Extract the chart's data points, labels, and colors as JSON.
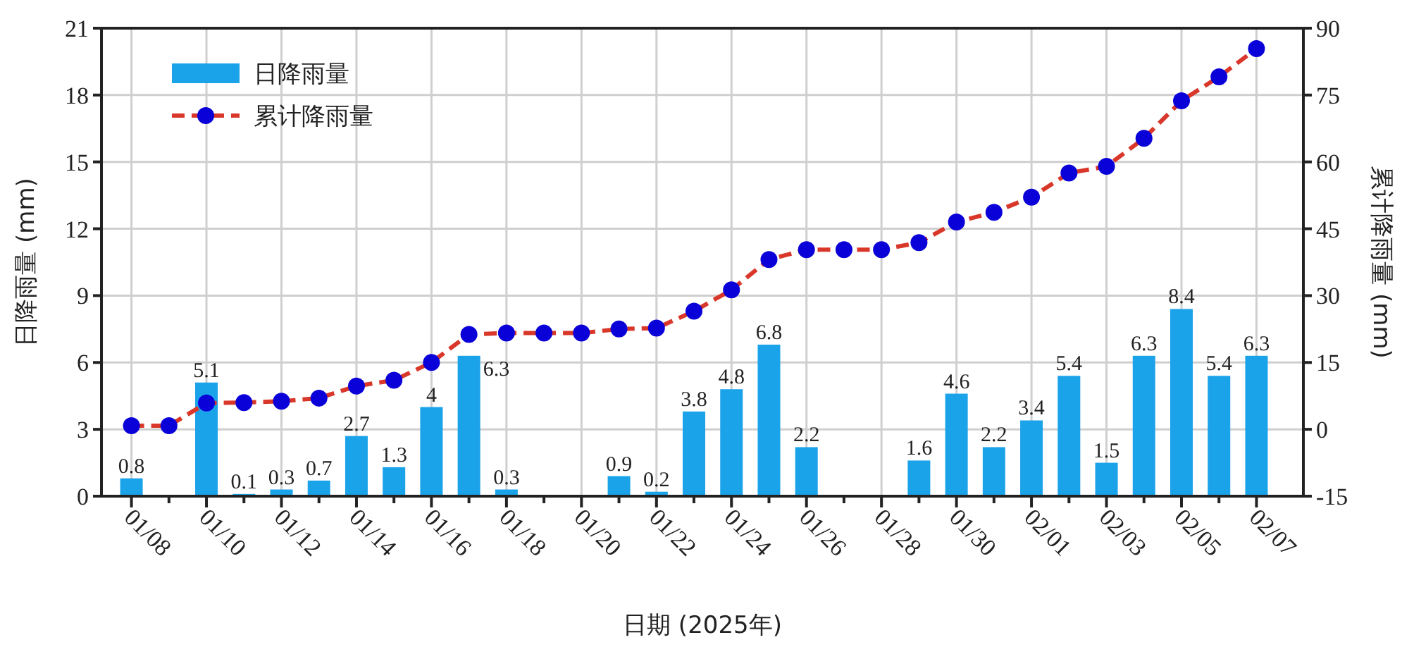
{
  "chart_data": {
    "type": "bar",
    "xlabel": "日期 (2025年)",
    "ylabel": "日降雨量 (mm)",
    "y2label": "累计降雨量 (mm)",
    "categories": [
      "01/08",
      null,
      "01/10",
      null,
      "01/12",
      null,
      "01/14",
      null,
      "01/16",
      null,
      "01/18",
      null,
      "01/20",
      null,
      "01/22",
      null,
      "01/24",
      null,
      "01/26",
      null,
      "01/28",
      null,
      "01/30",
      null,
      "02/01",
      null,
      "02/03",
      null,
      "02/05",
      null,
      "02/07"
    ],
    "series": [
      {
        "name": "日降雨量",
        "color": "#1ba3ea",
        "values": [
          0.8,
          null,
          5.1,
          0.1,
          0.3,
          0.7,
          2.7,
          1.3,
          4,
          6.3,
          0.3,
          null,
          null,
          0.9,
          0.2,
          3.8,
          4.8,
          6.8,
          2.2,
          null,
          null,
          1.6,
          4.6,
          2.2,
          3.4,
          5.4,
          1.5,
          6.3,
          8.4,
          5.4,
          6.3
        ],
        "value_labels": [
          "0.8",
          null,
          "5.1",
          "0.1",
          "0.3",
          "0.7",
          "2.7",
          "1.3",
          "4",
          "6.3",
          "0.3",
          null,
          null,
          "0.9",
          "0.2",
          "3.8",
          "4.8",
          "6.8",
          "2.2",
          null,
          null,
          "1.6",
          "4.6",
          "2.2",
          "3.4",
          "5.4",
          "1.5",
          "6.3",
          "8.4",
          "5.4",
          "6.3"
        ]
      },
      {
        "name": "累计降雨量",
        "type": "line",
        "axis": "y2",
        "color": "#d8372a",
        "marker": "circle",
        "line_style": "dashed",
        "values": [
          0.8,
          0.8,
          5.9,
          6.0,
          6.3,
          7.0,
          9.7,
          11.0,
          15.0,
          21.3,
          21.6,
          21.6,
          21.6,
          22.5,
          22.7,
          26.5,
          31.3,
          38.1,
          40.3,
          40.3,
          40.3,
          41.9,
          46.5,
          48.7,
          52.1,
          57.5,
          59.0,
          65.3,
          73.7,
          79.1,
          85.4
        ]
      }
    ],
    "ylim": [
      0,
      21
    ],
    "yticks": [
      0,
      3,
      6,
      9,
      12,
      15,
      18,
      21
    ],
    "y2lim": [
      -15,
      90
    ],
    "y2ticks": [
      -15,
      0,
      15,
      30,
      45,
      60,
      75,
      90
    ],
    "grid": true,
    "legend": "top left"
  }
}
